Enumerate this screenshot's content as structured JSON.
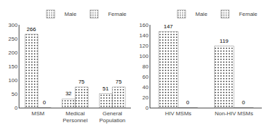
{
  "chart_data": [
    {
      "type": "bar",
      "categories": [
        "MSM",
        "Medical\nPersonnel",
        "General\nPopulation"
      ],
      "series": [
        {
          "name": "Male",
          "color": "#d8d8d8",
          "values": [
            266,
            32,
            51
          ]
        },
        {
          "name": "Female",
          "color": "#888888",
          "values": [
            0,
            75,
            75
          ]
        }
      ],
      "ylim": [
        0,
        300
      ],
      "yticks": [
        0,
        50,
        100,
        150,
        200,
        250,
        300
      ],
      "grid": false,
      "legend": "upper right",
      "data_labels": true
    },
    {
      "type": "bar",
      "categories": [
        "HIV MSMs",
        "Non-HIV MSMs"
      ],
      "series": [
        {
          "name": "Male",
          "color": "#d8d8d8",
          "values": [
            147,
            119
          ]
        },
        {
          "name": "Female",
          "color": "#888888",
          "values": [
            0,
            0
          ]
        }
      ],
      "ylim": [
        0,
        160
      ],
      "yticks": [
        0,
        20,
        40,
        60,
        80,
        100,
        120,
        140,
        160
      ],
      "grid": false,
      "legend": "upper right",
      "data_labels": true
    }
  ]
}
